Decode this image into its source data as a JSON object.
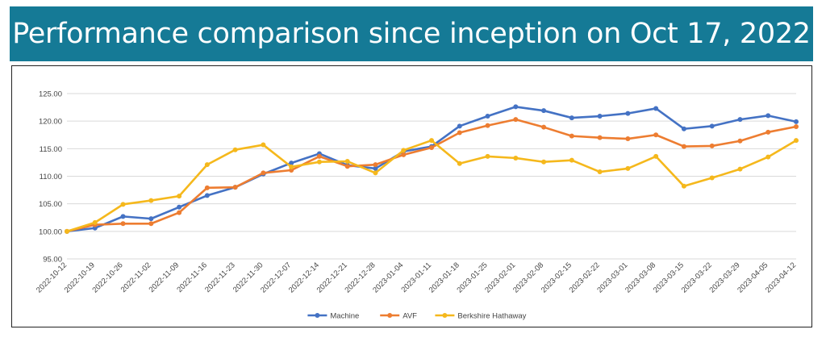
{
  "header": {
    "title": "Performance comparison since inception on Oct 17, 2022"
  },
  "chart_data": {
    "type": "line",
    "title": "",
    "xlabel": "",
    "ylabel": "",
    "ylim": [
      95,
      125
    ],
    "yticks": [
      "95.00",
      "100.00",
      "105.00",
      "110.00",
      "115.00",
      "120.00",
      "125.00"
    ],
    "grid": "horizontal",
    "legend_position": "bottom",
    "categories": [
      "2022-10-12",
      "2022-10-19",
      "2022-10-26",
      "2022-11-02",
      "2022-11-09",
      "2022-11-16",
      "2022-11-23",
      "2022-11-30",
      "2022-12-07",
      "2022-12-14",
      "2022-12-21",
      "2022-12-28",
      "2023-01-04",
      "2023-01-11",
      "2023-01-18",
      "2023-01-25",
      "2023-02-01",
      "2023-02-08",
      "2023-02-15",
      "2023-02-22",
      "2023-03-01",
      "2023-03-08",
      "2023-03-15",
      "2023-03-22",
      "2023-03-29",
      "2023-04-05",
      "2023-04-12"
    ],
    "series": [
      {
        "name": "Machine",
        "color": "#4472c4",
        "values": [
          100.0,
          100.6,
          102.7,
          102.3,
          104.4,
          106.5,
          108.0,
          110.4,
          112.4,
          114.1,
          112.0,
          111.4,
          114.5,
          115.4,
          119.1,
          120.9,
          122.6,
          121.9,
          120.6,
          120.9,
          121.4,
          122.3,
          118.6,
          119.1,
          120.3,
          121.0,
          119.9
        ]
      },
      {
        "name": "AVF",
        "color": "#ed7d31",
        "values": [
          100.0,
          101.2,
          101.4,
          101.4,
          103.4,
          107.9,
          108.0,
          110.6,
          111.1,
          113.6,
          111.8,
          112.1,
          113.9,
          115.2,
          117.9,
          119.2,
          120.3,
          118.9,
          117.3,
          117.0,
          116.8,
          117.5,
          115.4,
          115.5,
          116.4,
          118.0,
          119.0
        ]
      },
      {
        "name": "Berkshire Hathaway",
        "color": "#f5b81c",
        "values": [
          100.0,
          101.6,
          104.9,
          105.6,
          106.4,
          112.1,
          114.8,
          115.7,
          111.7,
          112.6,
          112.7,
          110.6,
          114.7,
          116.5,
          112.3,
          113.6,
          113.3,
          112.6,
          112.9,
          110.8,
          111.4,
          113.6,
          108.2,
          109.7,
          111.3,
          113.5,
          116.5
        ]
      }
    ]
  }
}
